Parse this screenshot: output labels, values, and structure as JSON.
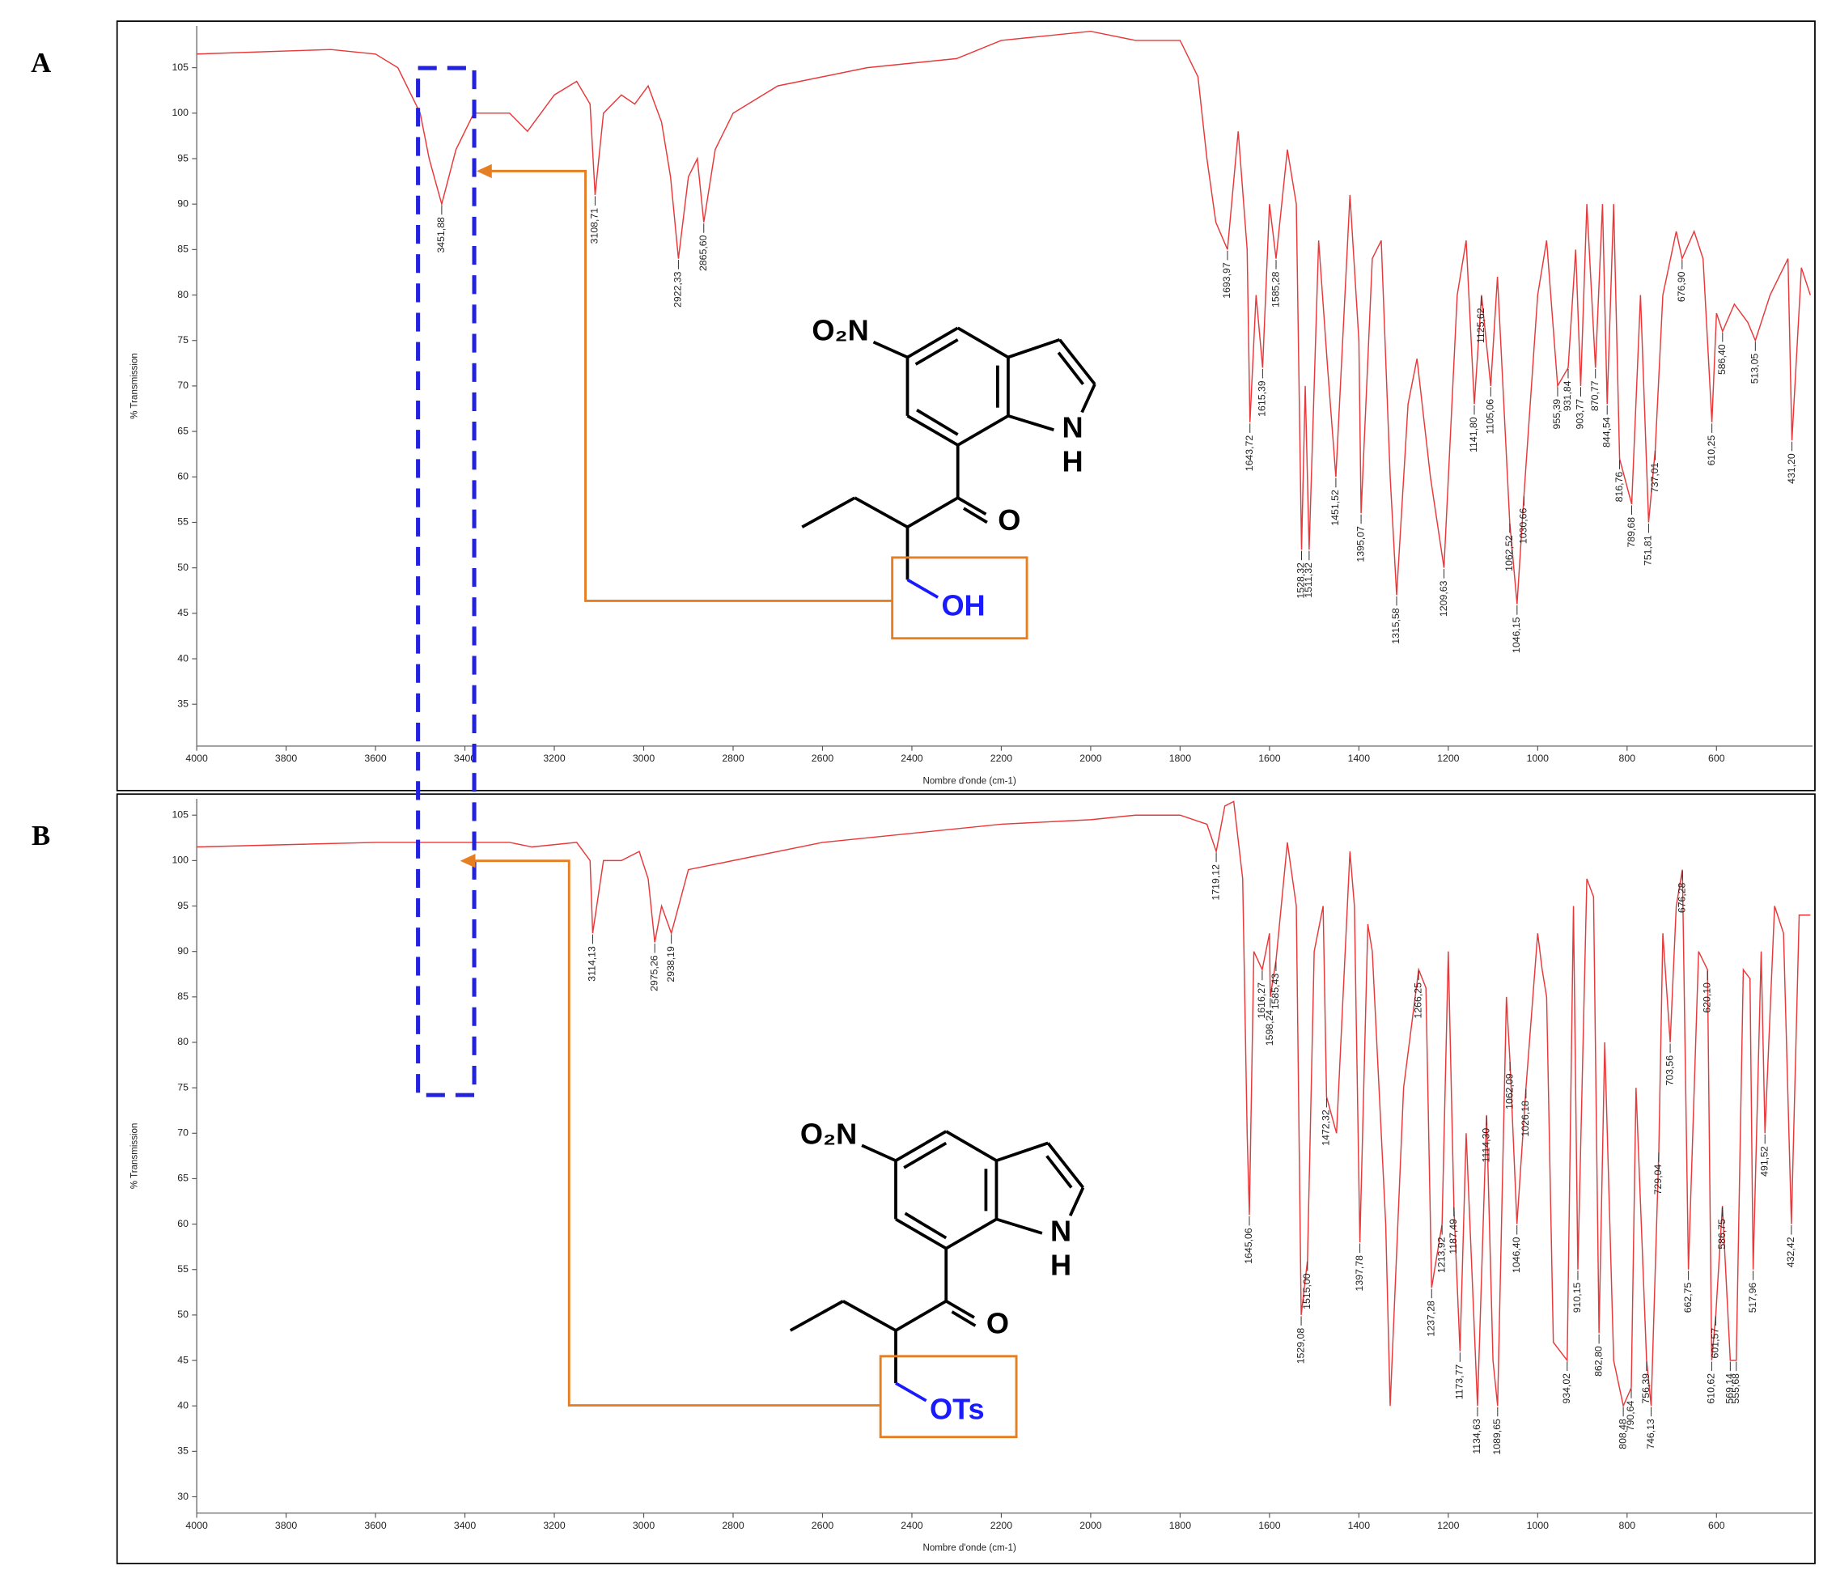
{
  "chart_data": [
    {
      "type": "line",
      "panel_label": "A",
      "ylabel": "% Transmission",
      "xlabel": "Nombre d'onde (cm-1)",
      "color": "#e8383a",
      "xlim": [
        4000,
        385
      ],
      "ylim": [
        30.4,
        109.6
      ],
      "xticks": [
        4000,
        3800,
        3600,
        3400,
        3200,
        3000,
        2800,
        2600,
        2400,
        2200,
        2000,
        1800,
        1600,
        1400,
        1200,
        1000,
        800,
        600
      ],
      "yticks": [
        35,
        40,
        45,
        50,
        55,
        60,
        65,
        70,
        75,
        80,
        85,
        90,
        95,
        100,
        105
      ],
      "x": [
        4000,
        3700,
        3600,
        3550,
        3500,
        3480,
        3451.88,
        3420,
        3380,
        3300,
        3260,
        3200,
        3150,
        3120,
        3108.71,
        3090,
        3050,
        3020,
        2990,
        2960,
        2940,
        2922.33,
        2900,
        2880,
        2865.6,
        2840,
        2800,
        2700,
        2500,
        2300,
        2200,
        2100,
        2000,
        1900,
        1800,
        1760,
        1740,
        1720,
        1693.97,
        1670,
        1650,
        1643.72,
        1630,
        1615.39,
        1600,
        1585.28,
        1560,
        1540,
        1528.32,
        1520,
        1511.32,
        1490,
        1470,
        1451.52,
        1420,
        1400,
        1395.07,
        1370,
        1350,
        1330,
        1315.58,
        1290,
        1270,
        1240,
        1209.63,
        1180,
        1160,
        1141.8,
        1125.62,
        1105.06,
        1090,
        1062.52,
        1046.15,
        1030.66,
        1000,
        980,
        955.39,
        931.84,
        915,
        903.77,
        890,
        870.77,
        855,
        844.54,
        830,
        816.76,
        789.68,
        770,
        751.81,
        737.01,
        720,
        690,
        676.9,
        650,
        630,
        610.25,
        600,
        586.4,
        560,
        530,
        513.05,
        480,
        440,
        431.2,
        410,
        390
      ],
      "values": [
        106.5,
        107,
        106.5,
        105,
        100,
        95,
        90,
        96,
        100,
        100,
        98,
        102,
        103.5,
        101,
        91,
        100,
        102,
        101,
        103,
        99,
        93,
        84,
        93,
        95,
        88,
        96,
        100,
        103,
        105,
        106,
        108,
        108.5,
        109,
        108,
        108,
        104,
        95,
        88,
        85,
        98,
        85,
        66,
        80,
        72,
        90,
        84,
        96,
        90,
        52,
        70,
        52,
        86,
        72,
        60,
        91,
        75,
        56,
        84,
        86,
        60,
        47,
        68,
        73,
        60,
        50,
        80,
        86,
        68,
        80,
        70,
        82,
        55,
        46,
        58,
        80,
        86,
        70,
        72,
        85,
        70,
        90,
        72,
        90,
        68,
        90,
        62,
        57,
        80,
        55,
        63,
        80,
        87,
        84,
        87,
        84,
        66,
        78,
        76,
        79,
        77,
        75,
        80,
        84,
        64,
        83,
        80
      ],
      "peaks": [
        {
          "value": 3451.88,
          "label": "3451,88"
        },
        {
          "value": 3108.71,
          "label": "3108,71"
        },
        {
          "value": 2922.33,
          "label": "2922,33"
        },
        {
          "value": 2865.6,
          "label": "2865,60"
        },
        {
          "value": 1693.97,
          "label": "1693,97"
        },
        {
          "value": 1643.72,
          "label": "1643,72"
        },
        {
          "value": 1615.39,
          "label": "1615,39"
        },
        {
          "value": 1585.28,
          "label": "1585,28"
        },
        {
          "value": 1528.32,
          "label": "1528,32"
        },
        {
          "value": 1511.32,
          "label": "1511,32"
        },
        {
          "value": 1451.52,
          "label": "1451,52"
        },
        {
          "value": 1395.07,
          "label": "1395,07"
        },
        {
          "value": 1315.58,
          "label": "1315,58"
        },
        {
          "value": 1209.63,
          "label": "1209,63"
        },
        {
          "value": 1141.8,
          "label": "1141,80"
        },
        {
          "value": 1125.62,
          "label": "1125,62"
        },
        {
          "value": 1105.06,
          "label": "1105,06"
        },
        {
          "value": 1062.52,
          "label": "1062,52"
        },
        {
          "value": 1046.15,
          "label": "1046,15"
        },
        {
          "value": 1030.66,
          "label": "1030,66"
        },
        {
          "value": 955.39,
          "label": "955,39"
        },
        {
          "value": 931.84,
          "label": "931,84"
        },
        {
          "value": 903.77,
          "label": "903,77"
        },
        {
          "value": 870.77,
          "label": "870,77"
        },
        {
          "value": 844.54,
          "label": "844,54"
        },
        {
          "value": 816.76,
          "label": "816,76"
        },
        {
          "value": 789.68,
          "label": "789,68"
        },
        {
          "value": 751.81,
          "label": "751,81"
        },
        {
          "value": 737.01,
          "label": "737,01"
        },
        {
          "value": 676.9,
          "label": "676,90"
        },
        {
          "value": 610.25,
          "label": "610,25"
        },
        {
          "value": 586.4,
          "label": "586,40"
        },
        {
          "value": 513.05,
          "label": "513,05"
        },
        {
          "value": 431.2,
          "label": "431,20"
        }
      ],
      "structure": {
        "nitro": "O₂N",
        "n": "N",
        "h": "H",
        "carbonyl": "O",
        "group": "OH"
      }
    },
    {
      "type": "line",
      "panel_label": "B",
      "ylabel": "% Transmission",
      "xlabel": "Nombre d'onde (cm-1)",
      "color": "#e8383a",
      "xlim": [
        4000,
        385
      ],
      "ylim": [
        28.2,
        106.8
      ],
      "xticks": [
        4000,
        3800,
        3600,
        3400,
        3200,
        3000,
        2800,
        2600,
        2400,
        2200,
        2000,
        1800,
        1600,
        1400,
        1200,
        1000,
        800,
        600
      ],
      "yticks": [
        30,
        35,
        40,
        45,
        50,
        55,
        60,
        65,
        70,
        75,
        80,
        85,
        90,
        95,
        100,
        105
      ],
      "x": [
        4000,
        3600,
        3300,
        3250,
        3150,
        3120,
        3114.13,
        3090,
        3050,
        3010,
        2990,
        2975.26,
        2960,
        2938.19,
        2900,
        2800,
        2600,
        2400,
        2200,
        2000,
        1900,
        1800,
        1740,
        1719.12,
        1700,
        1680,
        1660,
        1650,
        1645.06,
        1635,
        1616.27,
        1600,
        1598.24,
        1585.43,
        1560,
        1540,
        1529.08,
        1515,
        1500,
        1480,
        1472.32,
        1450,
        1420,
        1410,
        1397.78,
        1380,
        1370,
        1340,
        1330,
        1300,
        1266.25,
        1250,
        1237.28,
        1213.92,
        1200,
        1187.49,
        1173.77,
        1160,
        1134.63,
        1114.3,
        1100,
        1089.65,
        1070,
        1062.09,
        1046.4,
        1026.18,
        1000,
        990,
        980,
        965,
        934.02,
        920,
        910.15,
        890,
        875,
        862.8,
        850,
        830,
        808.48,
        790.64,
        780,
        756.39,
        746.13,
        729.04,
        720,
        703.56,
        690,
        676.28,
        662.75,
        640,
        620.1,
        610.62,
        601.57,
        586.75,
        569.14,
        555.68,
        540,
        525,
        517.96,
        500,
        491.52,
        470,
        450,
        432.42,
        415,
        390
      ],
      "values": [
        101.5,
        102,
        102,
        101.5,
        102,
        100,
        92,
        100,
        100,
        101,
        98,
        91,
        95,
        92,
        99,
        100,
        102,
        103,
        104,
        104.5,
        105,
        105,
        104,
        101,
        106,
        106.5,
        98,
        70,
        61,
        90,
        88,
        92,
        85,
        89,
        102,
        95,
        50,
        56,
        90,
        95,
        74,
        70,
        101,
        95,
        58,
        93,
        90,
        60,
        40,
        75,
        88,
        86,
        53,
        60,
        90,
        62,
        46,
        70,
        40,
        72,
        45,
        40,
        85,
        78,
        60,
        75,
        92,
        88,
        85,
        47,
        45,
        95,
        55,
        98,
        96,
        48,
        80,
        45,
        40,
        42,
        75,
        45,
        40,
        68,
        92,
        80,
        95,
        99,
        55,
        90,
        88,
        45,
        50,
        62,
        45,
        45,
        88,
        87,
        55,
        90,
        70,
        95,
        92,
        60,
        94,
        94
      ],
      "peaks": [
        {
          "value": 3114.13,
          "label": "3114,13"
        },
        {
          "value": 2975.26,
          "label": "2975,26"
        },
        {
          "value": 2938.19,
          "label": "2938,19"
        },
        {
          "value": 1719.12,
          "label": "1719,12"
        },
        {
          "value": 1645.06,
          "label": "1645,06"
        },
        {
          "value": 1616.27,
          "label": "1616,27"
        },
        {
          "value": 1598.24,
          "label": "1598,24"
        },
        {
          "value": 1585.43,
          "label": "1585,43"
        },
        {
          "value": 1529.08,
          "label": "1529,08"
        },
        {
          "value": 1515,
          "label": "1515,00"
        },
        {
          "value": 1472.32,
          "label": "1472,32"
        },
        {
          "value": 1397.78,
          "label": "1397,78"
        },
        {
          "value": 1266.25,
          "label": "1266,25"
        },
        {
          "value": 1237.28,
          "label": "1237,28"
        },
        {
          "value": 1213.92,
          "label": "1213,92"
        },
        {
          "value": 1187.49,
          "label": "1187,49"
        },
        {
          "value": 1173.77,
          "label": "1173,77"
        },
        {
          "value": 1134.63,
          "label": "1134,63"
        },
        {
          "value": 1114.3,
          "label": "1114,30"
        },
        {
          "value": 1089.65,
          "label": "1089,65"
        },
        {
          "value": 1062.09,
          "label": "1062,09"
        },
        {
          "value": 1046.4,
          "label": "1046,40"
        },
        {
          "value": 1026.18,
          "label": "1026,18"
        },
        {
          "value": 934.02,
          "label": "934,02"
        },
        {
          "value": 910.15,
          "label": "910,15"
        },
        {
          "value": 862.8,
          "label": "862,80"
        },
        {
          "value": 808.48,
          "label": "808,48"
        },
        {
          "value": 790.64,
          "label": "790,64"
        },
        {
          "value": 756.39,
          "label": "756,39"
        },
        {
          "value": 746.13,
          "label": "746,13"
        },
        {
          "value": 729.04,
          "label": "729,04"
        },
        {
          "value": 703.56,
          "label": "703,56"
        },
        {
          "value": 676.28,
          "label": "676,28"
        },
        {
          "value": 662.75,
          "label": "662,75"
        },
        {
          "value": 620.1,
          "label": "620,10"
        },
        {
          "value": 610.62,
          "label": "610,62"
        },
        {
          "value": 601.57,
          "label": "601,57"
        },
        {
          "value": 586.75,
          "label": "586,75"
        },
        {
          "value": 569.14,
          "label": "569,14"
        },
        {
          "value": 555.68,
          "label": "555,68"
        },
        {
          "value": 517.96,
          "label": "517,96"
        },
        {
          "value": 491.52,
          "label": "491,52"
        },
        {
          "value": 432.42,
          "label": "432,42"
        }
      ],
      "structure": {
        "nitro": "O₂N",
        "n": "N",
        "h": "H",
        "carbonyl": "O",
        "group": "OTs"
      }
    }
  ]
}
